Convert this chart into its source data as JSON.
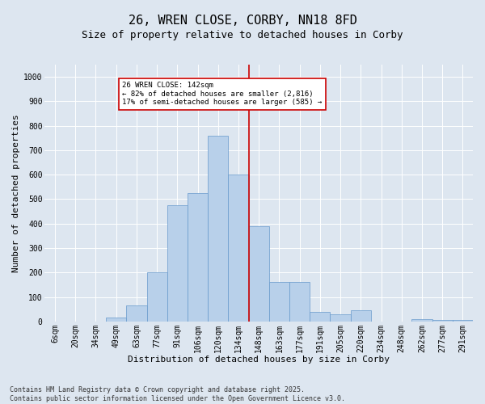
{
  "title_line1": "26, WREN CLOSE, CORBY, NN18 8FD",
  "title_line2": "Size of property relative to detached houses in Corby",
  "xlabel": "Distribution of detached houses by size in Corby",
  "ylabel": "Number of detached properties",
  "categories": [
    "6sqm",
    "20sqm",
    "34sqm",
    "49sqm",
    "63sqm",
    "77sqm",
    "91sqm",
    "106sqm",
    "120sqm",
    "134sqm",
    "148sqm",
    "163sqm",
    "177sqm",
    "191sqm",
    "205sqm",
    "220sqm",
    "234sqm",
    "248sqm",
    "262sqm",
    "277sqm",
    "291sqm"
  ],
  "values": [
    0,
    0,
    0,
    15,
    65,
    200,
    475,
    525,
    760,
    600,
    390,
    160,
    160,
    40,
    28,
    45,
    0,
    0,
    10,
    5,
    5
  ],
  "bar_color": "#b8d0ea",
  "bar_edge_color": "#6699cc",
  "vline_color": "#cc0000",
  "annotation_text": "26 WREN CLOSE: 142sqm\n← 82% of detached houses are smaller (2,816)\n17% of semi-detached houses are larger (585) →",
  "annotation_box_color": "#ffffff",
  "annotation_box_edge_color": "#cc0000",
  "ylim": [
    0,
    1050
  ],
  "yticks": [
    0,
    100,
    200,
    300,
    400,
    500,
    600,
    700,
    800,
    900,
    1000
  ],
  "bg_color": "#dde6f0",
  "plot_bg_color": "#dde6f0",
  "footer_text": "Contains HM Land Registry data © Crown copyright and database right 2025.\nContains public sector information licensed under the Open Government Licence v3.0.",
  "title_fontsize": 11,
  "subtitle_fontsize": 9,
  "axis_label_fontsize": 8,
  "tick_fontsize": 7,
  "footer_fontsize": 6
}
